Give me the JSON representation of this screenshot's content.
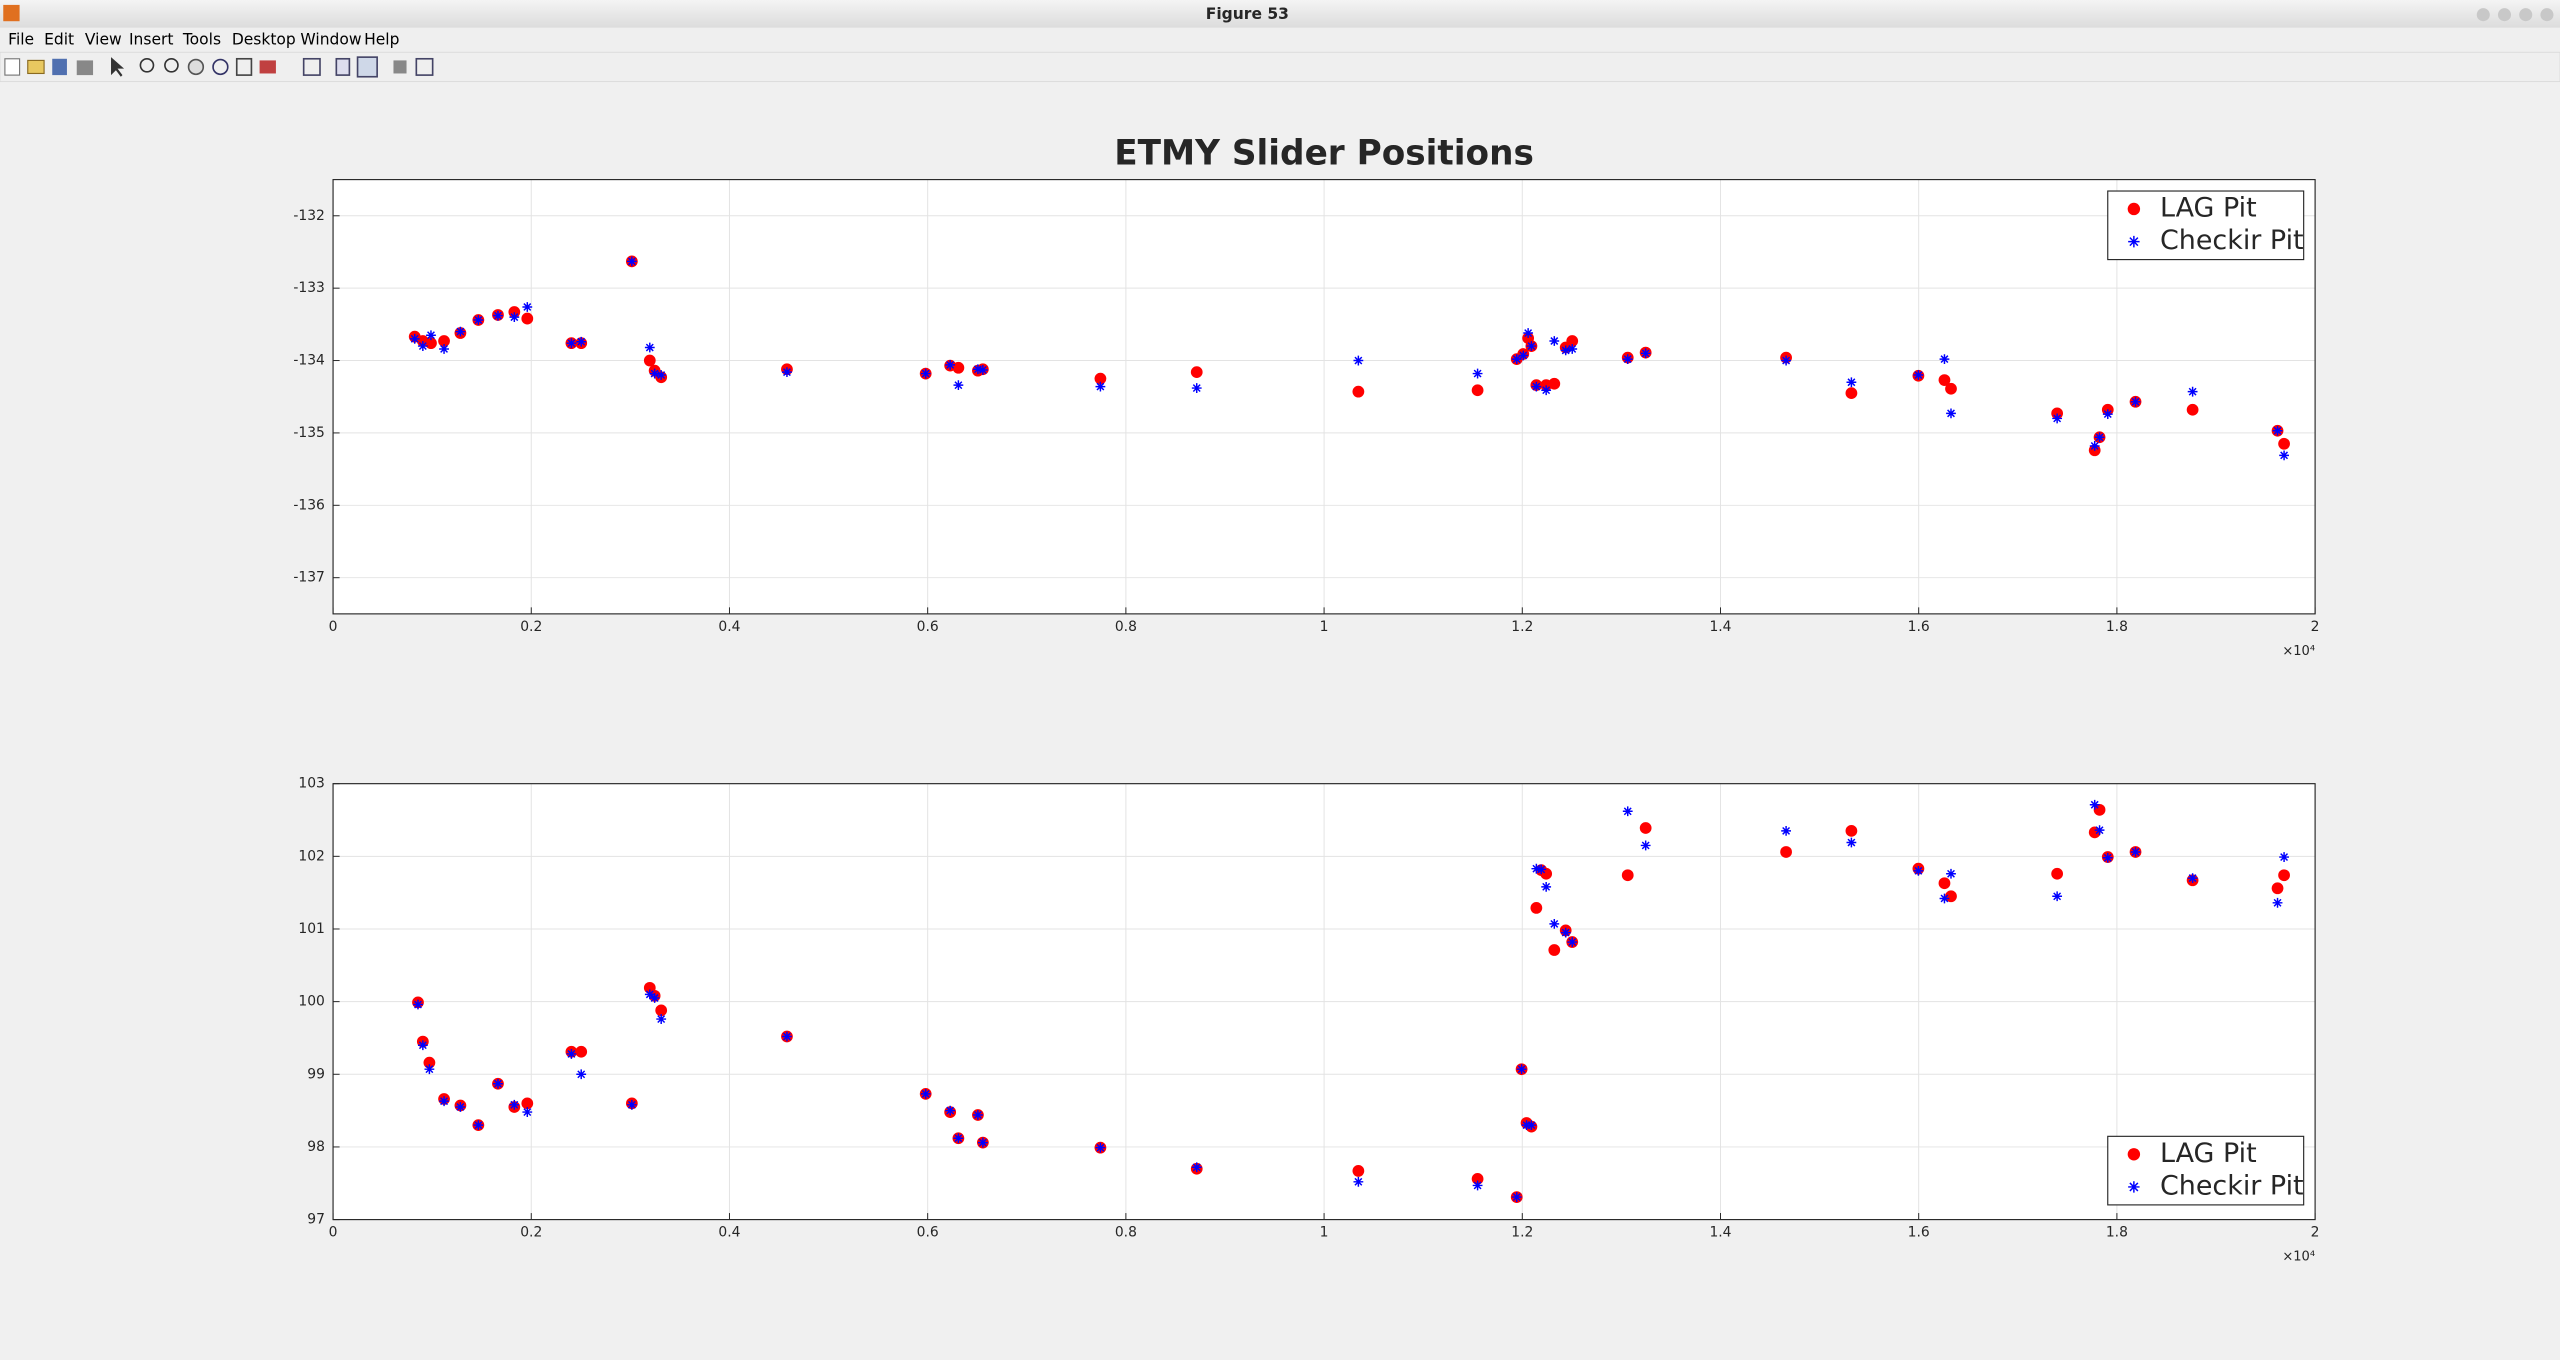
{
  "window": {
    "title": "Figure 53",
    "menu": [
      "File",
      "Edit",
      "View",
      "Insert",
      "Tools",
      "Desktop",
      "Window",
      "Help"
    ]
  },
  "chart_data": [
    {
      "type": "scatter",
      "title": "ETMY Slider Positions",
      "xlim": [
        0,
        20000
      ],
      "xticks": [
        {
          "value": 0,
          "label": "0"
        },
        {
          "value": 2000,
          "label": "0.2"
        },
        {
          "value": 4000,
          "label": "0.4"
        },
        {
          "value": 6000,
          "label": "0.6"
        },
        {
          "value": 8000,
          "label": "0.8"
        },
        {
          "value": 10000,
          "label": "1"
        },
        {
          "value": 12000,
          "label": "1.2"
        },
        {
          "value": 14000,
          "label": "1.4"
        },
        {
          "value": 16000,
          "label": "1.6"
        },
        {
          "value": 18000,
          "label": "1.8"
        },
        {
          "value": 20000,
          "label": "2"
        }
      ],
      "x_scale_label": "×10⁴",
      "ylim": [
        -137.5,
        -131.5
      ],
      "yticks": [
        -137,
        -136,
        -135,
        -134,
        -133,
        -132
      ],
      "grid": true,
      "legend": "upper right",
      "x": [
        824,
        906,
        988,
        1120,
        1285,
        1466,
        1664,
        1829,
        1960,
        2405,
        2504,
        3015,
        3196,
        3245,
        3311,
        4580,
        5980,
        6227,
        6310,
        6507,
        6557,
        7743,
        8715,
        10346,
        11549,
        11944,
        12010,
        12059,
        12092,
        12142,
        12241,
        12323,
        12438,
        12504,
        13064,
        13245,
        14662,
        15321,
        15997,
        16260,
        16326,
        17397,
        17776,
        17825,
        17908,
        18188,
        18764,
        19621,
        19687
      ],
      "series": [
        {
          "name": "LAG Pit",
          "color": "#ff0000",
          "marker": "o",
          "values": [
            -133.67,
            -133.73,
            -133.76,
            -133.73,
            -133.62,
            -133.44,
            -133.37,
            -133.33,
            -133.42,
            -133.76,
            -133.76,
            -132.63,
            -134.0,
            -134.14,
            -134.23,
            -134.12,
            -134.18,
            -134.07,
            -134.1,
            -134.14,
            -134.12,
            -134.25,
            -134.16,
            -134.43,
            -134.41,
            -133.98,
            -133.91,
            -133.69,
            -133.8,
            -134.34,
            -134.34,
            -134.32,
            -133.82,
            -133.73,
            -133.96,
            -133.89,
            -133.96,
            -134.45,
            -134.21,
            -134.27,
            -134.39,
            -134.73,
            -135.24,
            -135.06,
            -134.68,
            -134.57,
            -134.68,
            -134.97,
            -135.15
          ]
        },
        {
          "name": "Checkir Pit",
          "color": "#0000ff",
          "marker": "*",
          "values": [
            -133.7,
            -133.8,
            -133.65,
            -133.84,
            -133.6,
            -133.44,
            -133.38,
            -133.4,
            -133.26,
            -133.76,
            -133.74,
            -132.63,
            -133.82,
            -134.18,
            -134.2,
            -134.16,
            -134.18,
            -134.06,
            -134.34,
            -134.12,
            -134.13,
            -134.36,
            -134.38,
            -134.0,
            -134.18,
            -133.98,
            -133.93,
            -133.62,
            -133.8,
            -134.36,
            -134.41,
            -133.73,
            -133.86,
            -133.84,
            -133.98,
            -133.9,
            -134.0,
            -134.3,
            -134.2,
            -133.98,
            -134.73,
            -134.8,
            -135.18,
            -135.06,
            -134.74,
            -134.57,
            -134.43,
            -134.97,
            -135.31
          ]
        }
      ]
    },
    {
      "type": "scatter",
      "xlim": [
        0,
        20000
      ],
      "xticks": [
        {
          "value": 0,
          "label": "0"
        },
        {
          "value": 2000,
          "label": "0.2"
        },
        {
          "value": 4000,
          "label": "0.4"
        },
        {
          "value": 6000,
          "label": "0.6"
        },
        {
          "value": 8000,
          "label": "0.8"
        },
        {
          "value": 10000,
          "label": "1"
        },
        {
          "value": 12000,
          "label": "1.2"
        },
        {
          "value": 14000,
          "label": "1.4"
        },
        {
          "value": 16000,
          "label": "1.6"
        },
        {
          "value": 18000,
          "label": "1.8"
        },
        {
          "value": 20000,
          "label": "2"
        }
      ],
      "x_scale_label": "×10⁴",
      "ylim": [
        97,
        103
      ],
      "yticks": [
        97,
        98,
        99,
        100,
        101,
        102,
        103
      ],
      "grid": true,
      "legend": "lower right",
      "x": [
        857,
        906,
        972,
        1120,
        1285,
        1466,
        1664,
        1829,
        1960,
        2405,
        2504,
        3015,
        3196,
        3245,
        3311,
        4580,
        5980,
        6227,
        6310,
        6507,
        6557,
        7743,
        8715,
        10346,
        11549,
        11944,
        11993,
        12043,
        12092,
        12142,
        12191,
        12241,
        12323,
        12438,
        12504,
        13064,
        13245,
        14662,
        15321,
        15997,
        16260,
        16326,
        17397,
        17776,
        17825,
        17908,
        18188,
        18764,
        19621,
        19687
      ],
      "series": [
        {
          "name": "LAG Pit",
          "color": "#ff0000",
          "marker": "o",
          "values": [
            99.99,
            99.45,
            99.16,
            98.66,
            98.57,
            98.3,
            98.87,
            98.55,
            98.6,
            99.31,
            99.31,
            98.6,
            100.19,
            100.08,
            99.88,
            99.52,
            98.73,
            98.48,
            98.12,
            98.44,
            98.06,
            97.99,
            97.7,
            97.67,
            97.56,
            97.31,
            99.07,
            98.33,
            98.28,
            101.29,
            101.81,
            101.76,
            100.71,
            100.98,
            100.82,
            101.74,
            102.39,
            102.06,
            102.35,
            101.83,
            101.63,
            101.45,
            101.76,
            102.33,
            102.64,
            101.99,
            102.06,
            101.67,
            101.56,
            101.74
          ]
        },
        {
          "name": "Checkir Pit",
          "color": "#0000ff",
          "marker": "*",
          "values": [
            99.96,
            99.4,
            99.07,
            98.63,
            98.55,
            98.3,
            98.87,
            98.58,
            98.48,
            99.28,
            99.0,
            98.58,
            100.1,
            100.05,
            99.76,
            99.52,
            98.73,
            98.5,
            98.12,
            98.44,
            98.06,
            97.99,
            97.72,
            97.52,
            97.47,
            97.31,
            99.07,
            98.3,
            98.3,
            101.83,
            101.82,
            101.58,
            101.07,
            100.95,
            100.82,
            102.62,
            102.15,
            102.35,
            102.19,
            101.8,
            101.42,
            101.76,
            101.45,
            102.71,
            102.36,
            101.98,
            102.06,
            101.7,
            101.36,
            101.99
          ]
        }
      ]
    }
  ]
}
